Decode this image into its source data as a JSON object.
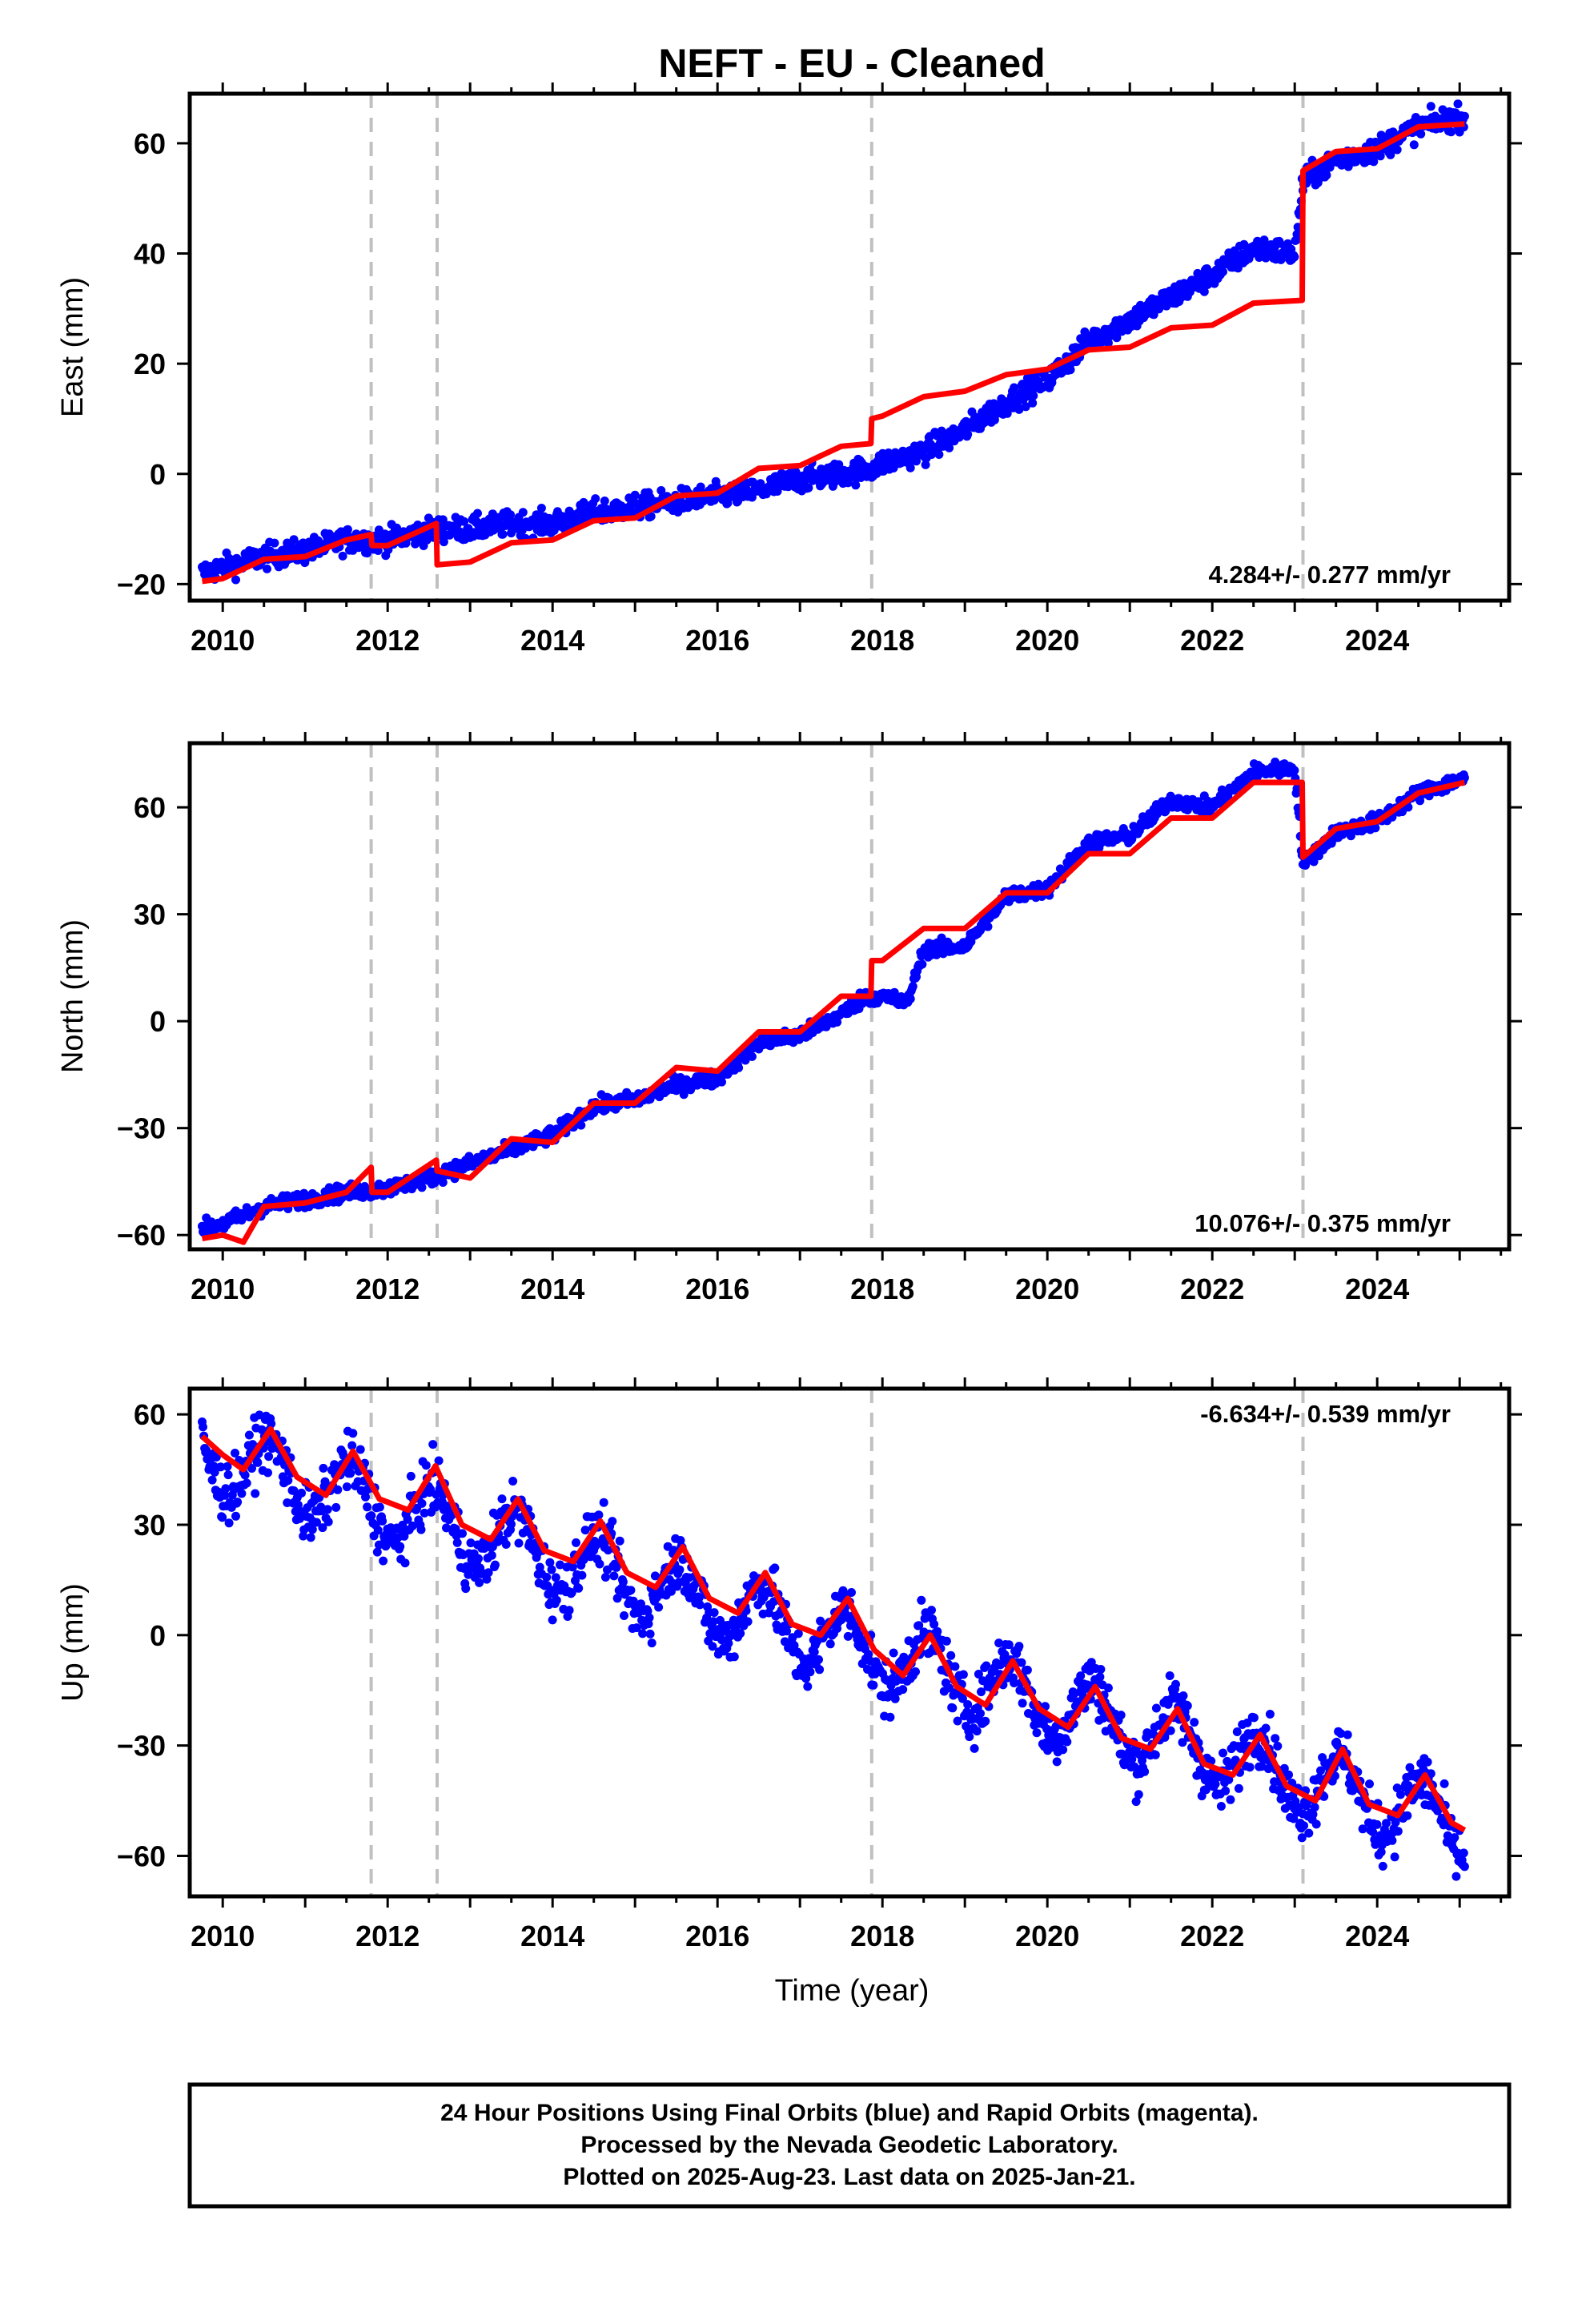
{
  "title": "NEFT  - EU - Cleaned",
  "colors": {
    "data": "#0000ff",
    "model": "#ff0000",
    "breaks": "#c0c0c0",
    "frame": "#000000"
  },
  "footer": {
    "line1": "24 Hour Positions Using Final Orbits (blue) and Rapid Orbits (magenta).",
    "line2": "Processed by the Nevada Geodetic Laboratory.",
    "line3": "Plotted on 2025-Aug-23. Last data on 2025-Jan-21."
  },
  "chart_data": [
    {
      "type": "scatter",
      "ylabel": "East (mm)",
      "xlabel": "",
      "xlim": [
        2009.6,
        2025.6
      ],
      "ylim": [
        -23,
        69
      ],
      "xticks": [
        2010,
        2012,
        2014,
        2016,
        2018,
        2020,
        2022,
        2024
      ],
      "yticks": [
        -20,
        0,
        20,
        40,
        60
      ],
      "rate_label": "4.284+/- 0.277 mm/yr",
      "rate_position": "bottom-right",
      "breaks": [
        2011.8,
        2012.6,
        2017.87,
        2023.1
      ],
      "series": [
        {
          "role": "daily positions (blue)",
          "x": [
            2009.75,
            2010.0,
            2010.5,
            2011.0,
            2011.5,
            2011.8,
            2012.0,
            2012.6,
            2013.0,
            2013.5,
            2014.0,
            2014.5,
            2015.0,
            2015.5,
            2016.0,
            2016.5,
            2017.0,
            2017.5,
            2017.87,
            2018.0,
            2018.5,
            2019.0,
            2019.5,
            2020.0,
            2020.5,
            2021.0,
            2021.5,
            2022.0,
            2022.5,
            2023.0,
            2023.1,
            2023.5,
            2024.0,
            2024.5,
            2025.06
          ],
          "y": [
            -18,
            -17,
            -15,
            -14,
            -12,
            -12,
            -12,
            -10,
            -10,
            -9,
            -9,
            -7,
            -6,
            -5,
            -4,
            -3,
            -1,
            0,
            1,
            2,
            4,
            8,
            13,
            17,
            24,
            28,
            32,
            36,
            41,
            40,
            53,
            57,
            59,
            63,
            65
          ]
        },
        {
          "role": "model fit (red)",
          "x": [
            2009.75,
            2010.0,
            2010.5,
            2011.0,
            2011.5,
            2011.8,
            2011.81,
            2012.0,
            2012.59,
            2012.6,
            2013.0,
            2013.5,
            2014.0,
            2014.5,
            2015.0,
            2015.5,
            2016.0,
            2016.5,
            2017.0,
            2017.5,
            2017.86,
            2017.87,
            2018.0,
            2018.5,
            2019.0,
            2019.5,
            2020.0,
            2020.5,
            2021.0,
            2021.5,
            2022.0,
            2022.5,
            2023.09,
            2023.1,
            2023.5,
            2024.0,
            2024.5,
            2025.06
          ],
          "y": [
            -19.5,
            -19,
            -15.5,
            -15,
            -12,
            -11,
            -13,
            -13,
            -9,
            -16.5,
            -16,
            -12.5,
            -12,
            -8.5,
            -8,
            -4,
            -3.5,
            1,
            1.5,
            5,
            5.5,
            10,
            10.5,
            14,
            15,
            18,
            19,
            22.5,
            23,
            26.5,
            27,
            31,
            31.5,
            55,
            58.5,
            59,
            63,
            63.5
          ]
        }
      ]
    },
    {
      "type": "scatter",
      "ylabel": "North (mm)",
      "xlabel": "",
      "xlim": [
        2009.6,
        2025.6
      ],
      "ylim": [
        -64,
        78
      ],
      "xticks": [
        2010,
        2012,
        2014,
        2016,
        2018,
        2020,
        2022,
        2024
      ],
      "yticks": [
        -60,
        -30,
        0,
        30,
        60
      ],
      "rate_label": "10.076+/- 0.375 mm/yr",
      "rate_position": "bottom-right",
      "breaks": [
        2011.8,
        2012.6,
        2017.87,
        2023.1
      ],
      "series": [
        {
          "role": "daily positions (blue)",
          "x": [
            2009.75,
            2010.0,
            2010.5,
            2011.0,
            2011.5,
            2012.0,
            2012.5,
            2013.0,
            2013.5,
            2014.0,
            2014.5,
            2015.0,
            2015.5,
            2016.0,
            2016.5,
            2017.0,
            2017.5,
            2017.8,
            2018.0,
            2018.3,
            2018.5,
            2019.0,
            2019.5,
            2020.0,
            2020.5,
            2021.0,
            2021.5,
            2022.0,
            2022.5,
            2023.0,
            2023.1,
            2023.5,
            2024.0,
            2024.5,
            2025.06
          ],
          "y": [
            -58,
            -57,
            -52,
            -50,
            -48,
            -47,
            -44,
            -40,
            -36,
            -32,
            -24,
            -22,
            -18,
            -16,
            -6,
            -4,
            2,
            7,
            7,
            5,
            20,
            21,
            35,
            37,
            50,
            52,
            62,
            60,
            70,
            71,
            44,
            53,
            56,
            64,
            68
          ]
        },
        {
          "role": "model fit (red)",
          "x": [
            2009.75,
            2010.0,
            2010.25,
            2010.5,
            2011.0,
            2011.5,
            2011.8,
            2011.81,
            2012.0,
            2012.59,
            2012.6,
            2013.0,
            2013.5,
            2014.0,
            2014.5,
            2015.0,
            2015.5,
            2016.0,
            2016.5,
            2017.0,
            2017.5,
            2017.86,
            2017.87,
            2018.0,
            2018.5,
            2019.0,
            2019.5,
            2020.0,
            2020.5,
            2021.0,
            2021.5,
            2022.0,
            2022.5,
            2023.09,
            2023.1,
            2023.5,
            2024.0,
            2024.5,
            2025.06
          ],
          "y": [
            -61,
            -60,
            -62,
            -52,
            -51,
            -48,
            -41,
            -48,
            -48,
            -39,
            -42,
            -44,
            -33,
            -34,
            -23,
            -23,
            -13,
            -14,
            -3,
            -3,
            7,
            7,
            17,
            17,
            26,
            26,
            36,
            36,
            47,
            47,
            57,
            57,
            67,
            67,
            46,
            54,
            56,
            64,
            67
          ]
        }
      ]
    },
    {
      "type": "scatter",
      "ylabel": "Up (mm)",
      "xlabel": "Time (year)",
      "xlim": [
        2009.6,
        2025.6
      ],
      "ylim": [
        -71,
        67
      ],
      "xticks": [
        2010,
        2012,
        2014,
        2016,
        2018,
        2020,
        2022,
        2024
      ],
      "yticks": [
        -60,
        -30,
        0,
        30,
        60
      ],
      "rate_label": "-6.634+/- 0.539 mm/yr",
      "rate_position": "top-right",
      "breaks": [
        2011.8,
        2012.6,
        2017.87,
        2023.1
      ],
      "series": [
        {
          "role": "daily positions (blue)",
          "trend": {
            "offset_2010": 48,
            "slope": -6.634,
            "seasonal_amplitude": 9,
            "seasonal_peak_month": "July",
            "scatter": 4
          },
          "x": [
            2009.75,
            2025.06
          ],
          "y": [
            52,
            -52
          ]
        },
        {
          "role": "model fit (red)",
          "x": [
            2009.75,
            2010.0,
            2010.25,
            2010.58,
            2010.9,
            2011.25,
            2011.58,
            2011.9,
            2012.25,
            2012.58,
            2012.9,
            2013.25,
            2013.58,
            2013.9,
            2014.25,
            2014.58,
            2014.9,
            2015.25,
            2015.58,
            2015.9,
            2016.25,
            2016.58,
            2016.9,
            2017.25,
            2017.58,
            2017.9,
            2018.25,
            2018.58,
            2018.9,
            2019.25,
            2019.58,
            2019.9,
            2020.25,
            2020.58,
            2020.9,
            2021.25,
            2021.58,
            2021.9,
            2022.25,
            2022.58,
            2022.9,
            2023.25,
            2023.58,
            2023.9,
            2024.25,
            2024.58,
            2024.9,
            2025.06
          ],
          "y": [
            54,
            49,
            45,
            56,
            43,
            38,
            50,
            37,
            34,
            46,
            30,
            26,
            37,
            23,
            20,
            31,
            17,
            13,
            24,
            10,
            6,
            17,
            3,
            0,
            10,
            -4,
            -11,
            0,
            -14,
            -19,
            -7,
            -20,
            -25,
            -14,
            -28,
            -31,
            -20,
            -35,
            -38,
            -27,
            -41,
            -45,
            -31,
            -46,
            -49,
            -38,
            -51,
            -53
          ]
        }
      ]
    }
  ]
}
